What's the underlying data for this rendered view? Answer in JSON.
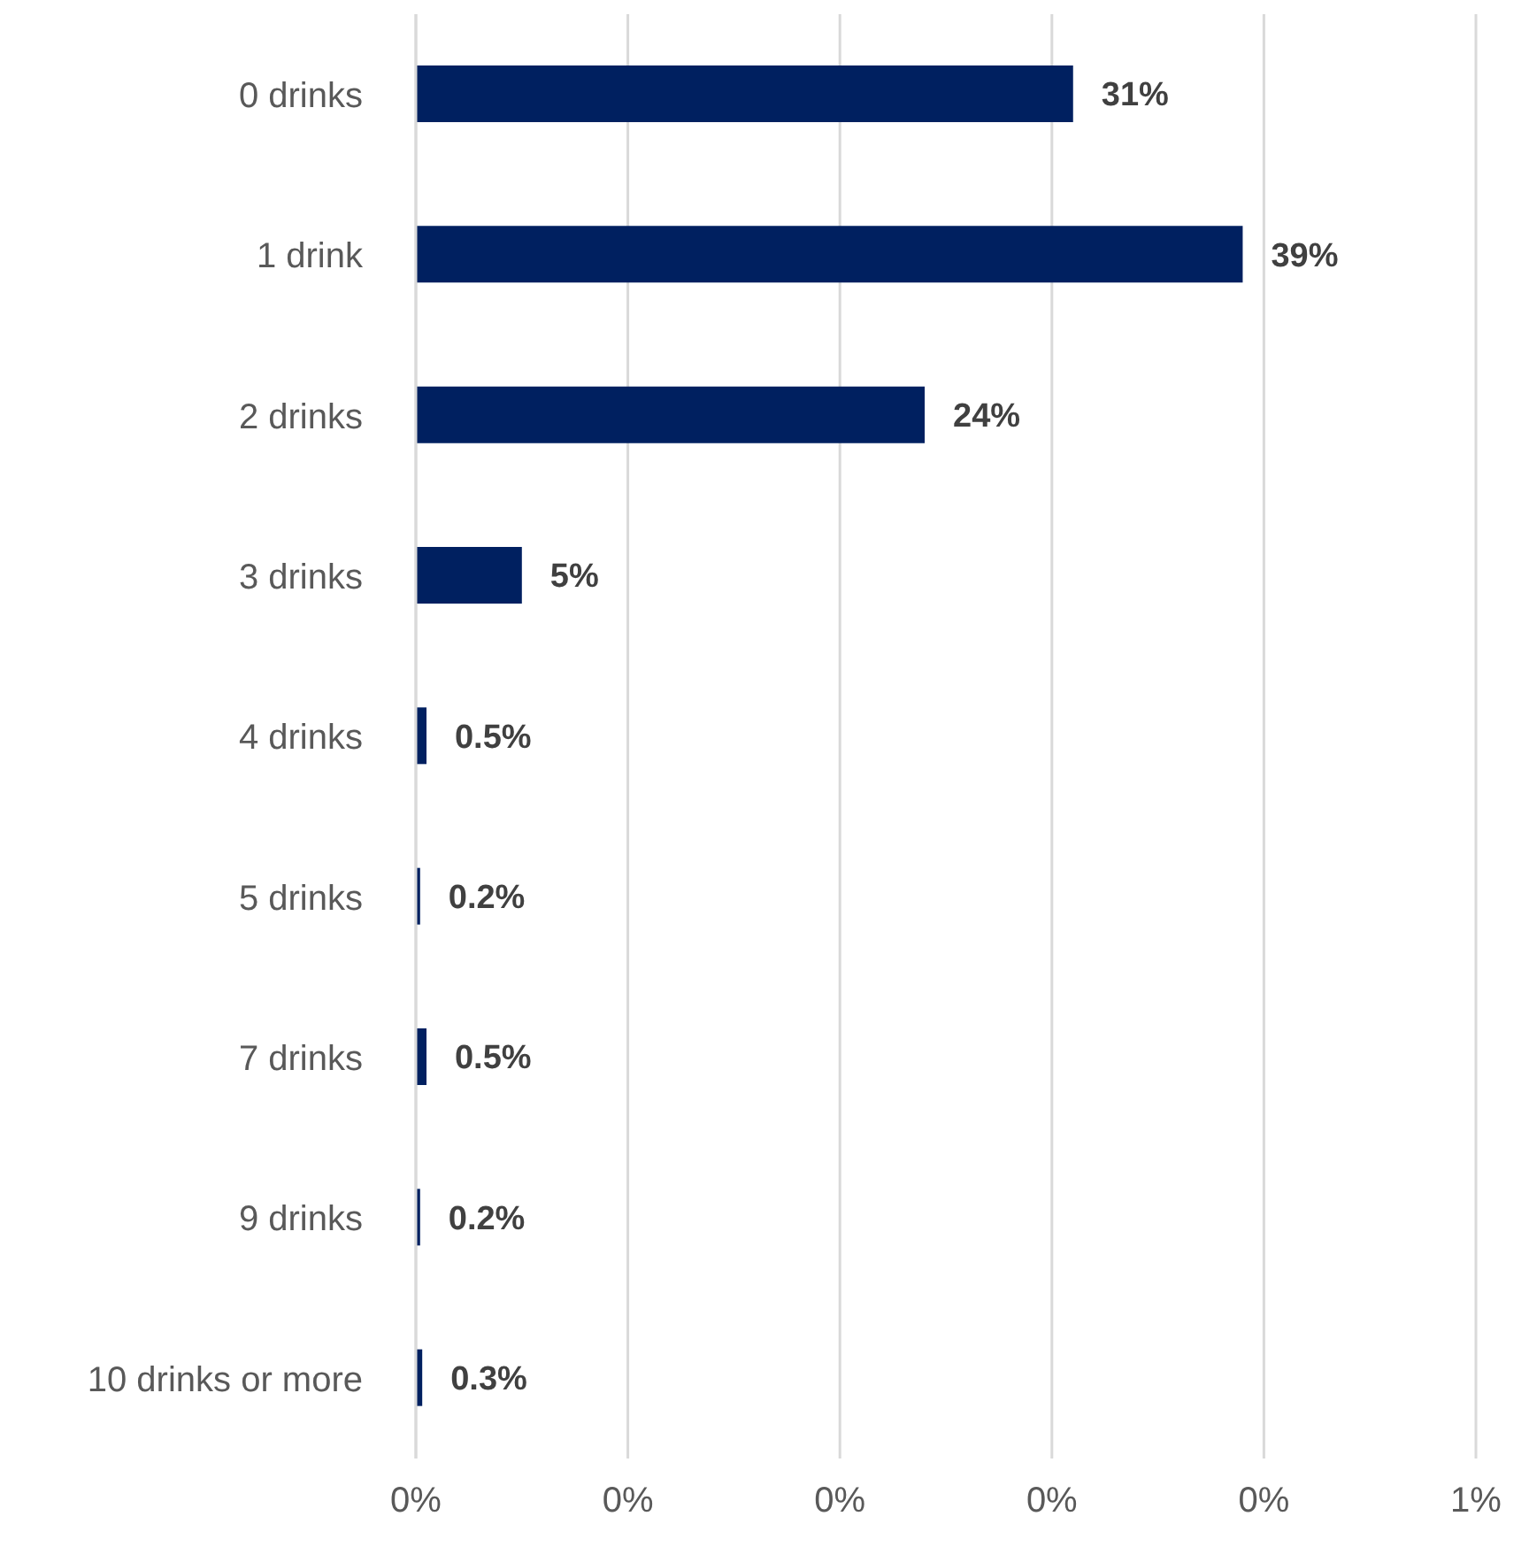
{
  "chart_data": {
    "type": "bar",
    "orientation": "horizontal",
    "categories": [
      "0 drinks",
      "1 drink",
      "2 drinks",
      "3 drinks",
      "4 drinks",
      "5 drinks",
      "7 drinks",
      "9 drinks",
      "10 drinks or more"
    ],
    "values": [
      31,
      39,
      24,
      5,
      0.5,
      0.2,
      0.5,
      0.2,
      0.3
    ],
    "value_labels": [
      "31%",
      "39%",
      "24%",
      "5%",
      "0.5%",
      "0.2%",
      "0.5%",
      "0.2%",
      "0.3%"
    ],
    "color": "#002060",
    "xlim": [
      0,
      50
    ],
    "xticks": [
      {
        "value": 0,
        "label": null
      },
      {
        "value": 10,
        "label": null
      },
      {
        "value": 20,
        "label": null
      },
      {
        "value": 30,
        "label": null
      },
      {
        "value": 40,
        "label": null
      },
      {
        "value": 50,
        "label": null
      }
    ],
    "annotations": [
      "0%",
      "0%",
      "0%",
      "0%",
      "0%",
      "1%"
    ],
    "grid": "x",
    "legend": false
  }
}
